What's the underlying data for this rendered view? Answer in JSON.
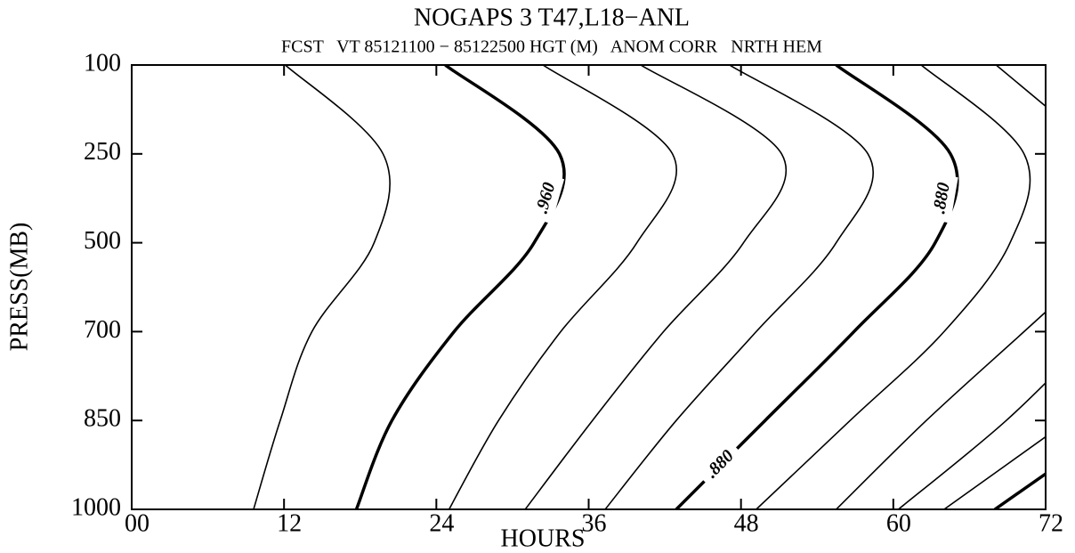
{
  "chart_data": {
    "type": "contour",
    "title": "NOGAPS 3 T47,L18−ANL",
    "subtitle": "FCST   VT 85121100 − 85122500 HGT (M)   ANOM CORR   NRTH HEM",
    "x_label": "HOURS",
    "y_label": "PRESS(MB)",
    "categories": [
      "100",
      "250",
      "500",
      "700",
      "850",
      "1000"
    ],
    "xlim": [
      0,
      72
    ],
    "xticks": [
      {
        "value": 0,
        "label": "00"
      },
      12,
      24,
      36,
      48,
      60,
      72
    ],
    "color": "#000000",
    "series": [
      {
        "values": [
          12.1,
          19.8,
          19.1,
          14.2,
          11.7,
          9.6
        ]
      },
      {
        "values": [
          24.7,
          33.7,
          31.7,
          25.4,
          20.5,
          17.7
        ],
        "bold": true,
        "labels": [
          ".960"
        ]
      },
      {
        "values": [
          32.4,
          42.6,
          39.8,
          33.8,
          28.9,
          25.0
        ]
      },
      {
        "values": [
          40.1,
          51.2,
          48.2,
          41.9,
          36.3,
          31.0
        ]
      },
      {
        "values": [
          47.1,
          58.0,
          55.5,
          49.2,
          42.9,
          37.3
        ]
      },
      {
        "values": [
          55.5,
          64.5,
          63.3,
          56.9,
          49.9,
          42.9
        ],
        "bold": true,
        "labels": [
          ".880",
          ".880"
        ]
      },
      {
        "values": [
          62.2,
          70.3,
          69.2,
          64.0,
          56.6,
          49.2
        ]
      },
      {
        "values": [
          68.1,
          76.5,
          null,
          null,
          null,
          null
        ]
      },
      {
        "values": [
          null,
          null,
          78.0,
          70.3,
          62.6,
          55.5
        ]
      },
      {
        "values": [
          null,
          null,
          null,
          76.0,
          68.9,
          60.4
        ]
      },
      {
        "values": [
          null,
          null,
          null,
          null,
          73.8,
          64.0
        ]
      },
      {
        "values": [
          null,
          null,
          null,
          null,
          78.0,
          68.0
        ],
        "bold": true
      }
    ]
  }
}
